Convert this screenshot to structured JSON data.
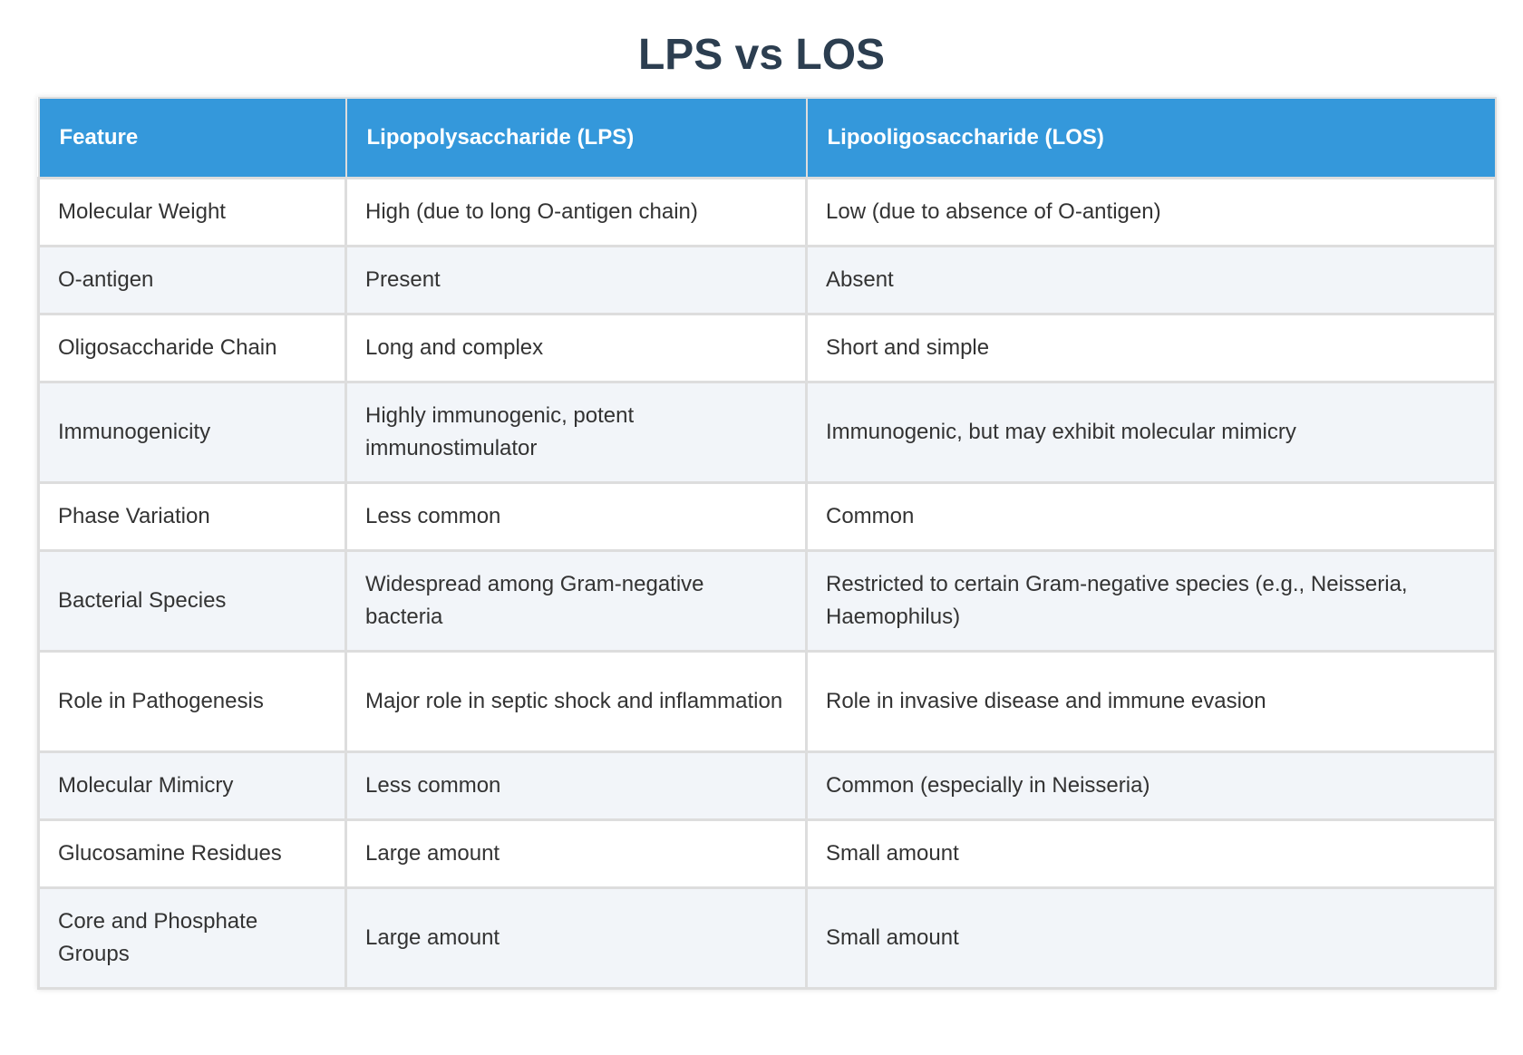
{
  "title": "LPS vs LOS",
  "table": {
    "headers": [
      "Feature",
      "Lipopolysaccharide (LPS)",
      "Lipooligosaccharide (LOS)"
    ],
    "rows": [
      [
        "Molecular Weight",
        "High (due to long O-antigen chain)",
        "Low (due to absence of O-antigen)"
      ],
      [
        "O-antigen",
        "Present",
        "Absent"
      ],
      [
        "Oligosaccharide Chain",
        "Long and complex",
        "Short and simple"
      ],
      [
        "Immunogenicity",
        "Highly immunogenic, potent immunostimulator",
        "Immunogenic, but may exhibit molecular mimicry"
      ],
      [
        "Phase Variation",
        "Less common",
        "Common"
      ],
      [
        "Bacterial Species",
        "Widespread among Gram-negative bacteria",
        "Restricted to certain Gram-negative species (e.g., Neisseria, Haemophilus)"
      ],
      [
        "Role in Pathogenesis",
        "Major role in septic shock and inflammation",
        "Role in invasive disease and immune evasion"
      ],
      [
        "Molecular Mimicry",
        "Less common",
        "Common (especially in Neisseria)"
      ],
      [
        "Glucosamine Residues",
        "Large amount",
        "Small amount"
      ],
      [
        "Core and Phosphate Groups",
        "Large amount",
        "Small amount"
      ]
    ]
  },
  "colors": {
    "header_bg": "#3498db",
    "title": "#2c3e50",
    "stripe": "#f2f5f9"
  }
}
